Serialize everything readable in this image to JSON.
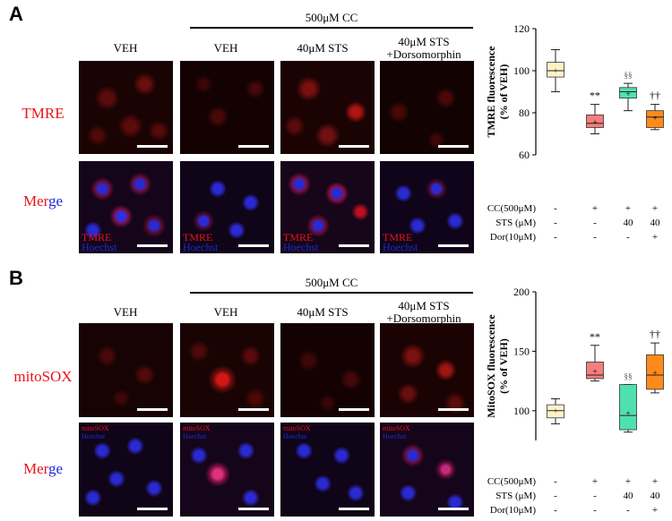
{
  "panel_a": {
    "letter": "A",
    "group_label": "500μM CC",
    "columns": [
      "VEH",
      "VEH",
      "40μM STS",
      "40μM STS",
      "+Dorsomorphin"
    ],
    "row_labels": {
      "tmre": "TMRE",
      "merge_part1": "Mer",
      "merge_part2": "ge"
    },
    "overlay": {
      "top": "TMRE",
      "bottom": "Hoechst"
    }
  },
  "panel_b": {
    "letter": "B",
    "group_label": "500μM CC",
    "columns": [
      "VEH",
      "VEH",
      "40μM STS",
      "40μM STS",
      "+Dorsomorphin"
    ],
    "row_labels": {
      "mitosox": "mitoSOX",
      "merge_part1": "Mer",
      "merge_part2": "ge"
    },
    "overlay": {
      "top": "mitoSOX",
      "bottom": "Hoechst"
    }
  },
  "conditions": {
    "labels": [
      "CC(500μM)",
      "STS (μM)",
      "Dor(10μM)"
    ],
    "values": [
      [
        "-",
        "+",
        "+",
        "+"
      ],
      [
        "-",
        "-",
        "40",
        "40"
      ],
      [
        "-",
        "-",
        "-",
        "+"
      ]
    ]
  },
  "chart_data": [
    {
      "type": "box",
      "ylabel": "TMRE fluorescence",
      "ylabel2": "(% of VEH)",
      "ylim": [
        60,
        120
      ],
      "yticks": [
        60,
        80,
        100,
        120
      ],
      "grid": false,
      "colors": [
        "#fff2c6",
        "#f47e7e",
        "#4fe0b0",
        "#ff8a1c"
      ],
      "boxes": [
        {
          "whisker_low": 90,
          "q1": 97,
          "median": 100,
          "q3": 104,
          "whisker_high": 110,
          "mean": 100,
          "annotation": ""
        },
        {
          "whisker_low": 70,
          "q1": 73,
          "median": 75,
          "q3": 79,
          "whisker_high": 84,
          "mean": 75.5,
          "annotation": "**"
        },
        {
          "whisker_low": 81,
          "q1": 87,
          "median": 90,
          "q3": 92,
          "whisker_high": 94,
          "mean": 89,
          "annotation": "§§"
        },
        {
          "whisker_low": 72,
          "q1": 73,
          "median": 78,
          "q3": 81,
          "whisker_high": 84,
          "mean": 77.5,
          "annotation": "††"
        }
      ]
    },
    {
      "type": "box",
      "ylabel": "MitoSOX fluorescence",
      "ylabel2": "(% of VEH)",
      "ylim": [
        75,
        200
      ],
      "yticks": [
        100,
        150,
        200
      ],
      "grid": false,
      "colors": [
        "#fff2c6",
        "#f47e7e",
        "#4fe0b0",
        "#ff8a1c"
      ],
      "boxes": [
        {
          "whisker_low": 89,
          "q1": 94,
          "median": 100,
          "q3": 105,
          "whisker_high": 110,
          "mean": 100,
          "annotation": ""
        },
        {
          "whisker_low": 125,
          "q1": 127,
          "median": 130,
          "q3": 141,
          "whisker_high": 155,
          "mean": 133,
          "annotation": "**"
        },
        {
          "whisker_low": 82,
          "q1": 84,
          "median": 96,
          "q3": 122,
          "whisker_high": 122,
          "mean": 98,
          "annotation": "§§"
        },
        {
          "whisker_low": 115,
          "q1": 118,
          "median": 130,
          "q3": 147,
          "whisker_high": 157,
          "mean": 132,
          "annotation": "††"
        }
      ]
    }
  ]
}
